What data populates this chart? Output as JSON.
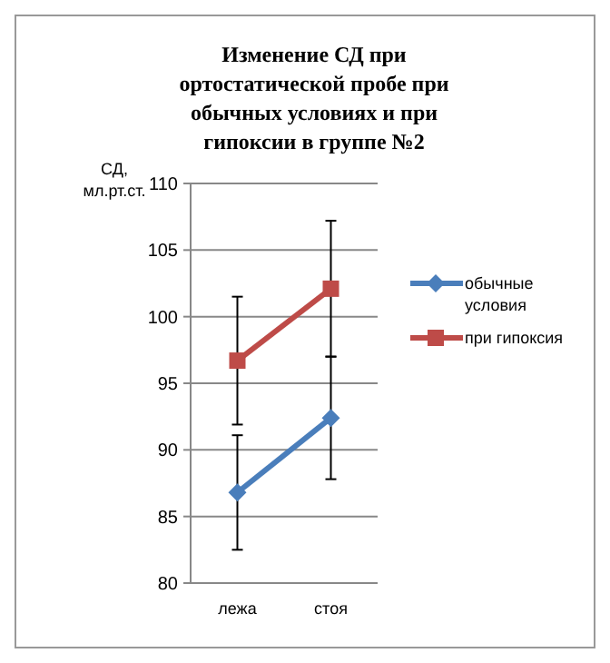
{
  "chart_data": {
    "type": "line",
    "title": "Изменение СД при ортостатической пробе при обычных условиях и при гипоксии в группе №2",
    "ylabel": "СД, мл.рт.ст.",
    "categories": [
      "лежа",
      "стоя"
    ],
    "series": [
      {
        "name": "обычные условия",
        "color": "#4a7ebb",
        "marker": "diamond",
        "values": [
          86.8,
          92.4
        ],
        "errors": [
          4.3,
          4.6
        ]
      },
      {
        "name": "при гипоксия",
        "color": "#be4b48",
        "marker": "square",
        "values": [
          96.7,
          102.1
        ],
        "errors": [
          4.8,
          5.1
        ]
      }
    ],
    "ylim": [
      80,
      110
    ],
    "yticks": [
      80,
      85,
      90,
      95,
      100,
      105,
      110
    ],
    "grid": "y",
    "legend": "right"
  }
}
